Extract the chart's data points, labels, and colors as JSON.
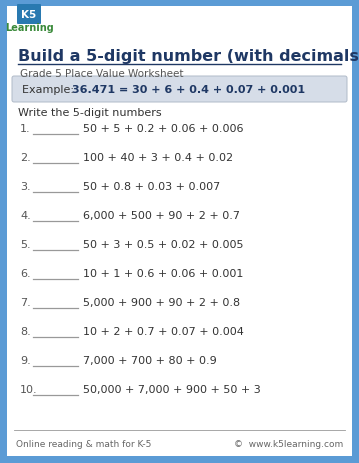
{
  "title": "Build a 5-digit number (with decimals)",
  "subtitle": "Grade 5 Place Value Worksheet",
  "example_label": "Example:   ",
  "example_text": "36.471 = 30 + 6 + 0.4 + 0.07 + 0.001",
  "instruction": "Write the 5-digit numbers",
  "problems": [
    "50 + 5 + 0.2 + 0.06 + 0.006",
    "100 + 40 + 3 + 0.4 + 0.02",
    "50 + 0.8 + 0.03 + 0.007",
    "6,000 + 500 + 90 + 2 + 0.7",
    "50 + 3 + 0.5 + 0.02 + 0.005",
    "10 + 1 + 0.6 + 0.06 + 0.001",
    "5,000 + 900 + 90 + 2 + 0.8",
    "10 + 2 + 0.7 + 0.07 + 0.004",
    "7,000 + 700 + 80 + 0.9",
    "50,000 + 7,000 + 900 + 50 + 3"
  ],
  "footer_left": "Online reading & math for K-5",
  "footer_right": "©  www.k5learning.com",
  "bg_color": "#5b9bd5",
  "page_bg": "#ffffff",
  "title_color": "#1f3864",
  "subtitle_color": "#555555",
  "example_box_color": "#d6dde8",
  "example_label_color": "#333333",
  "example_text_color": "#1f3864",
  "problem_color": "#333333",
  "number_color": "#555555",
  "footer_color": "#666666",
  "line_color": "#999999",
  "title_underline_color": "#1f3864",
  "logo_k5_color": "#2979b0",
  "logo_learning_color": "#3a8a3a"
}
